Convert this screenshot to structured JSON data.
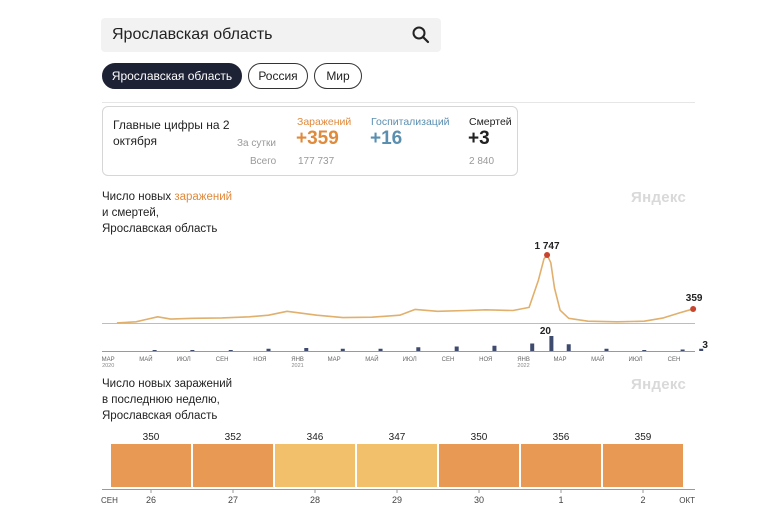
{
  "search": {
    "value": "Ярославская область",
    "icon": "search-icon"
  },
  "regions": [
    {
      "label": "Ярославская область",
      "active": true
    },
    {
      "label": "Россия",
      "active": false
    },
    {
      "label": "Мир",
      "active": false
    }
  ],
  "summary": {
    "title": "Главные цифры на 2 октября",
    "per_day_label": "За сутки",
    "total_label": "Всего",
    "infections": {
      "label": "Заражений",
      "today": "+359",
      "total": "177 737",
      "color": "#e08a3c"
    },
    "hospitalizations": {
      "label": "Госпитализаций",
      "today": "+16",
      "color": "#5a8fb0"
    },
    "deaths": {
      "label": "Смертей",
      "today": "+3",
      "total": "2 840",
      "color": "#222222"
    }
  },
  "chart1": {
    "title_part1": "Число новых ",
    "title_accent": "заражений",
    "title_part2": "и смертей,",
    "title_part3": "Ярославская область",
    "brand": "Яндекс"
  },
  "chart2": {
    "title_line1": "Число новых заражений",
    "title_line2": "в последнюю неделю,",
    "title_line3": "Ярославская область",
    "brand": "Яндекс"
  },
  "chart_data": [
    {
      "type": "line",
      "title": "Число новых заражений и смертей, Ярославская область",
      "series": [
        {
          "name": "заражений",
          "x": [
            "2020-03-15",
            "2020-04-15",
            "2020-05-01",
            "2020-05-20",
            "2020-06-10",
            "2020-07-15",
            "2020-09-01",
            "2020-10-15",
            "2020-11-15",
            "2020-12-15",
            "2021-02-01",
            "2021-03-15",
            "2021-05-01",
            "2021-06-15",
            "2021-07-10",
            "2021-08-15",
            "2021-10-01",
            "2021-11-01",
            "2021-12-15",
            "2022-01-10",
            "2022-01-25",
            "2022-02-03",
            "2022-02-08",
            "2022-02-14",
            "2022-02-20",
            "2022-03-01",
            "2022-03-15",
            "2022-04-15",
            "2022-06-01",
            "2022-07-15",
            "2022-08-15",
            "2022-09-10",
            "2022-09-25",
            "2022-10-02"
          ],
          "y": [
            2,
            30,
            90,
            160,
            100,
            120,
            130,
            160,
            200,
            300,
            200,
            140,
            150,
            200,
            350,
            300,
            320,
            340,
            320,
            400,
            1100,
            1650,
            1747,
            1550,
            900,
            330,
            120,
            45,
            30,
            45,
            130,
            260,
            330,
            359
          ],
          "color": "#e0b06c",
          "annotations": [
            {
              "label": "1 747",
              "x": "2022-02-08",
              "y": 1747
            },
            {
              "label": "359",
              "x": "2022-10-02",
              "y": 359
            }
          ]
        },
        {
          "name": "смертей",
          "type": "bar",
          "x": [
            "2020-05",
            "2020-07",
            "2020-09",
            "2020-11",
            "2021-01",
            "2021-03",
            "2021-05",
            "2021-07",
            "2021-09",
            "2021-11",
            "2022-01",
            "2022-02",
            "2022-03",
            "2022-05",
            "2022-07",
            "2022-09",
            "2022-10"
          ],
          "y": [
            1,
            1,
            1,
            3,
            4,
            3,
            3,
            5,
            6,
            7,
            10,
            20,
            9,
            3,
            1,
            2,
            3
          ],
          "color": "#3e4b6e",
          "annotations": [
            {
              "label": "20",
              "x": "2022-02",
              "y": 20
            },
            {
              "label": "3",
              "x": "2022-10",
              "y": 3
            }
          ]
        }
      ],
      "x_ticks": [
        {
          "label": "МАР",
          "sub": "2020"
        },
        {
          "label": "МАЙ",
          "sub": ""
        },
        {
          "label": "ИЮЛ",
          "sub": ""
        },
        {
          "label": "СЕН",
          "sub": ""
        },
        {
          "label": "НОЯ",
          "sub": ""
        },
        {
          "label": "ЯНВ",
          "sub": "2021"
        },
        {
          "label": "МАР",
          "sub": ""
        },
        {
          "label": "МАЙ",
          "sub": ""
        },
        {
          "label": "ИЮЛ",
          "sub": ""
        },
        {
          "label": "СЕН",
          "sub": ""
        },
        {
          "label": "НОЯ",
          "sub": ""
        },
        {
          "label": "ЯНВ",
          "sub": "2022"
        },
        {
          "label": "МАР",
          "sub": ""
        },
        {
          "label": "МАЙ",
          "sub": ""
        },
        {
          "label": "ИЮЛ",
          "sub": ""
        },
        {
          "label": "СЕН",
          "sub": ""
        }
      ]
    },
    {
      "type": "bar",
      "title": "Число новых заражений в последнюю неделю, Ярославская область",
      "categories": [
        "26",
        "27",
        "28",
        "29",
        "30",
        "1",
        "2"
      ],
      "values": [
        350,
        352,
        346,
        347,
        350,
        356,
        359
      ],
      "colors": [
        "#e89a55",
        "#e89a55",
        "#f2bf6a",
        "#f2bf6a",
        "#e89a55",
        "#e89a55",
        "#e89a55"
      ],
      "x_edge_labels": [
        "СЕН",
        "ОКТ"
      ]
    }
  ]
}
